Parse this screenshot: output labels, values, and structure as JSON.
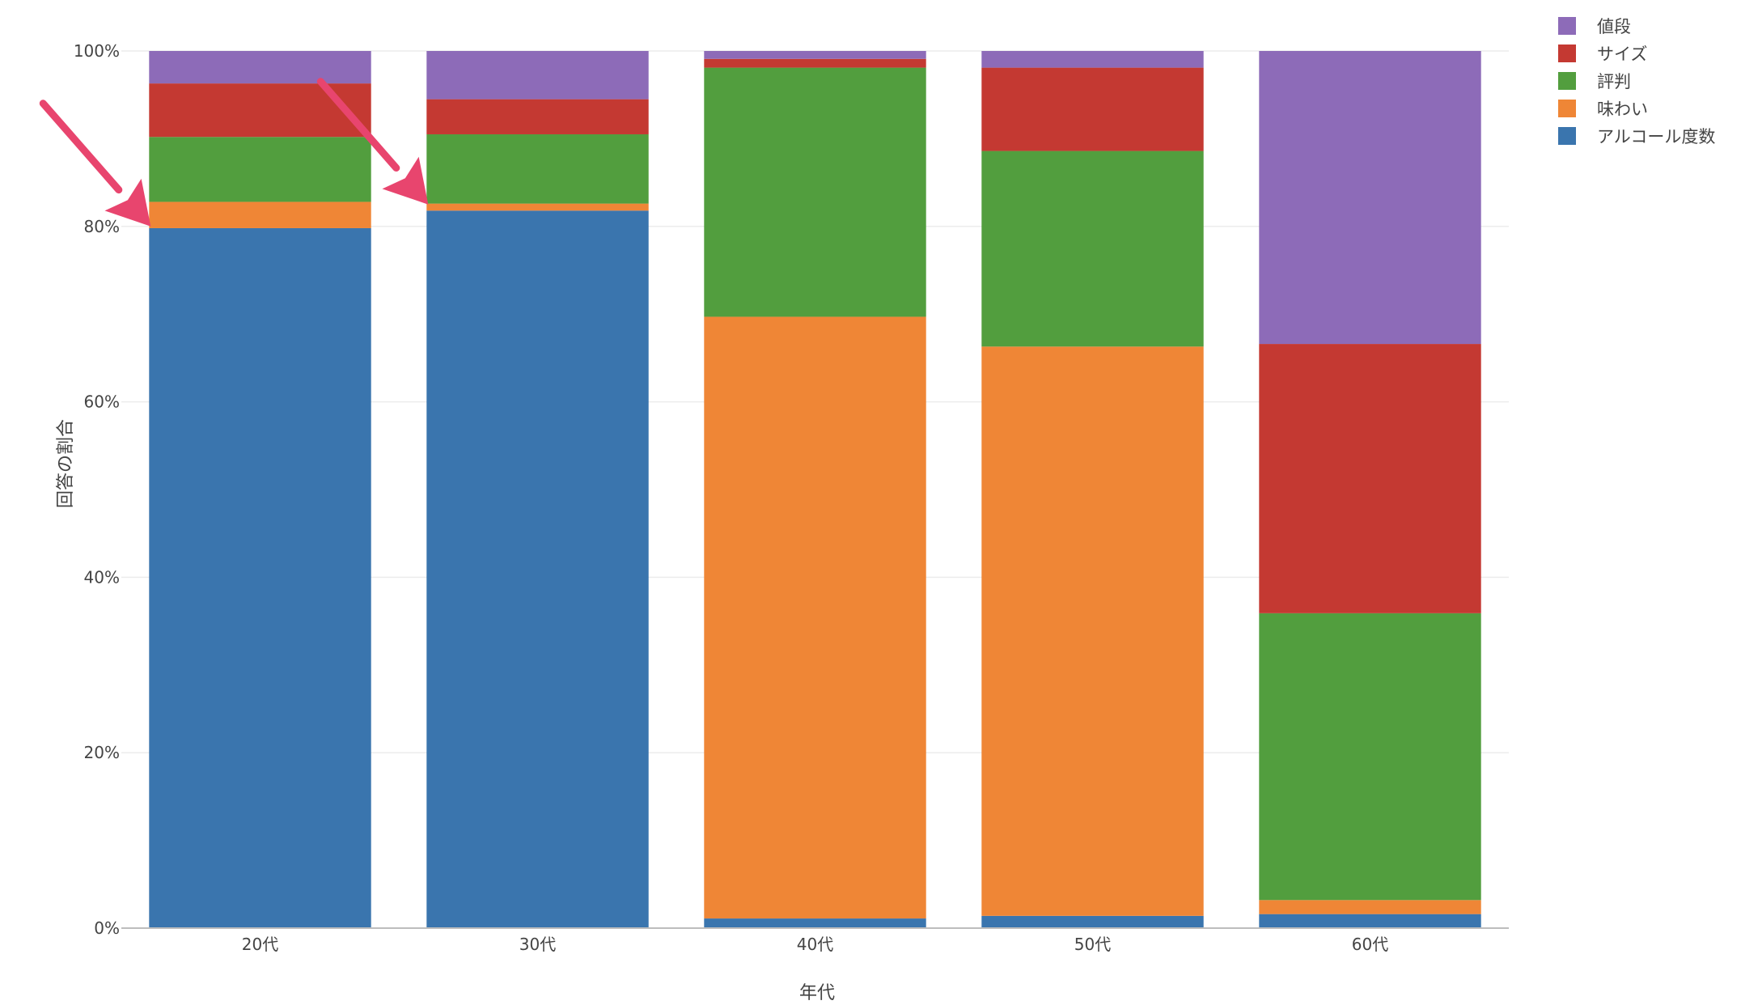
{
  "chart_data": {
    "type": "bar",
    "stacked": true,
    "title": "",
    "xlabel": "年代",
    "ylabel": "回答の割合",
    "ylim": [
      0,
      100
    ],
    "y_ticks": [
      "0%",
      "20%",
      "40%",
      "60%",
      "80%",
      "100%"
    ],
    "categories": [
      "20代",
      "30代",
      "40代",
      "50代",
      "60代"
    ],
    "grid": true,
    "legend_position": "top-right",
    "series": [
      {
        "name": "アルコール度数",
        "color": "#3a75ae",
        "values": [
          79.8,
          81.8,
          1.1,
          1.4,
          1.6
        ]
      },
      {
        "name": "味わい",
        "color": "#ef8636",
        "values": [
          3.0,
          0.8,
          68.6,
          64.9,
          1.6
        ]
      },
      {
        "name": "評判",
        "color": "#529e3e",
        "values": [
          7.4,
          7.9,
          28.4,
          22.3,
          32.7
        ]
      },
      {
        "name": "サイズ",
        "color": "#c43932",
        "values": [
          6.1,
          4.0,
          1.0,
          9.5,
          30.7
        ]
      },
      {
        "name": "値段",
        "color": "#8d6bb8",
        "values": [
          3.7,
          5.5,
          0.9,
          1.9,
          33.4
        ]
      }
    ],
    "legend_order": [
      "値段",
      "サイズ",
      "評判",
      "味わい",
      "アルコール度数"
    ],
    "annotations": [
      {
        "type": "arrow",
        "target_category": "20代",
        "target_value": 80,
        "color": "#e8456e"
      },
      {
        "type": "arrow",
        "target_category": "30代",
        "target_value": 82.5,
        "color": "#e8456e"
      }
    ]
  }
}
